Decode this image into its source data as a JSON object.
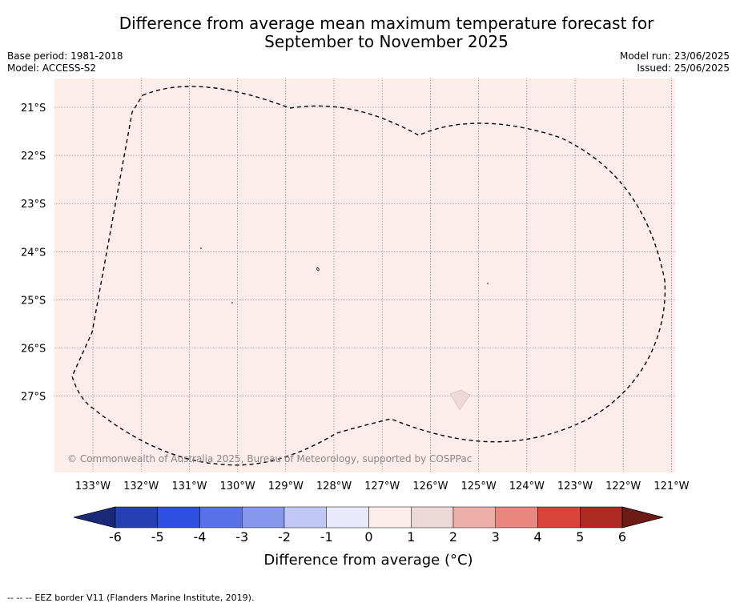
{
  "header": {
    "title_line1": "Difference from average mean maximum temperature forecast for",
    "title_line2": "September to November 2025",
    "base_period": "Base period: 1981-2018",
    "model": "Model: ACCESS-S2",
    "model_run": "Model run: 23/06/2025",
    "issued": "Issued: 25/06/2025"
  },
  "map": {
    "background_color": "#fcecea",
    "anomaly_bin": "0 to 1",
    "latitudes": [
      "21°S",
      "22°S",
      "23°S",
      "24°S",
      "25°S",
      "26°S",
      "27°S"
    ],
    "longitudes": [
      "133°W",
      "132°W",
      "131°W",
      "130°W",
      "129°W",
      "128°W",
      "127°W",
      "126°W",
      "125°W",
      "124°W",
      "123°W",
      "122°W",
      "121°W"
    ],
    "copyright": "© Commonwealth of Australia 2025, Bureau of Meteorology, supported by COSPPac"
  },
  "colorbar": {
    "ticks": [
      "-6",
      "-5",
      "-4",
      "-3",
      "-2",
      "-1",
      "0",
      "1",
      "2",
      "3",
      "4",
      "5",
      "6"
    ],
    "colors": [
      "#2440b3",
      "#2f4fe0",
      "#5a72e8",
      "#8797ee",
      "#c2c8f5",
      "#e8eafb",
      "#fcecea",
      "#ecd8d7",
      "#eeaea9",
      "#e8877f",
      "#d9453b",
      "#ad2a23"
    ],
    "under_color": "#1b2a78",
    "over_color": "#6e1a15",
    "label": "Difference from average (°C)"
  },
  "footer": {
    "legend_symbol": "-- -- --",
    "legend_text": "EEZ border V11 (Flanders Marine Institute, 2019)."
  }
}
